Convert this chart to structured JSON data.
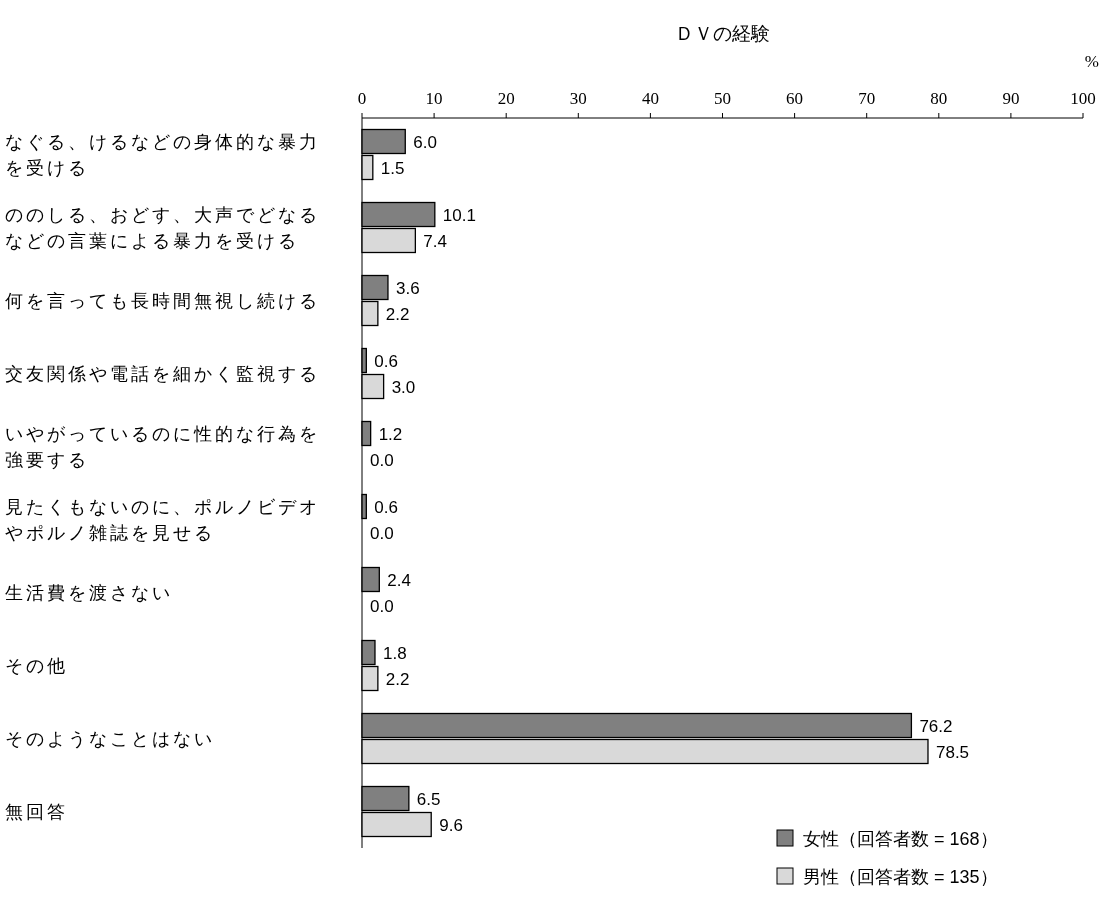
{
  "chart_data": {
    "type": "bar",
    "orientation": "horizontal",
    "title": "ＤＶの経験",
    "xlabel": "%",
    "categories": [
      "なぐる、けるなどの身体的な暴力を受ける",
      "ののしる、おどす、大声でどなるなどの言葉による暴力を受ける",
      "何を言っても長時間無視し続ける",
      "交友関係や電話を細かく監視する",
      "いやがっているのに性的な行為を強要する",
      "見たくもないのに、ポルノビデオやポルノ雑誌を見せる",
      "生活費を渡さない",
      "その他",
      "そのようなことはない",
      "無回答"
    ],
    "series": [
      {
        "name": "女性（回答者数 = 168）",
        "color": "#808080",
        "values": [
          6.0,
          10.1,
          3.6,
          0.6,
          1.2,
          0.6,
          2.4,
          1.8,
          76.2,
          6.5
        ],
        "value_labels": [
          "6.0",
          "10.1",
          "3.6",
          "0.6",
          "1.2",
          "0.6",
          "2.4",
          "1.8",
          "76.2",
          "6.5"
        ]
      },
      {
        "name": "男性（回答者数 = 135）",
        "color": "#d9d9d9",
        "values": [
          1.5,
          7.4,
          2.2,
          3.0,
          0.0,
          0.0,
          0.0,
          2.2,
          78.5,
          9.6
        ],
        "value_labels": [
          "1.5",
          "7.4",
          "2.2",
          "3.0",
          "0.0",
          "0.0",
          "0.0",
          "2.2",
          "78.5",
          "9.6"
        ]
      }
    ],
    "xlim": [
      0,
      100
    ],
    "xticks": [
      0,
      10,
      20,
      30,
      40,
      50,
      60,
      70,
      80,
      90,
      100
    ],
    "grid": false,
    "legend": "bottom right"
  }
}
